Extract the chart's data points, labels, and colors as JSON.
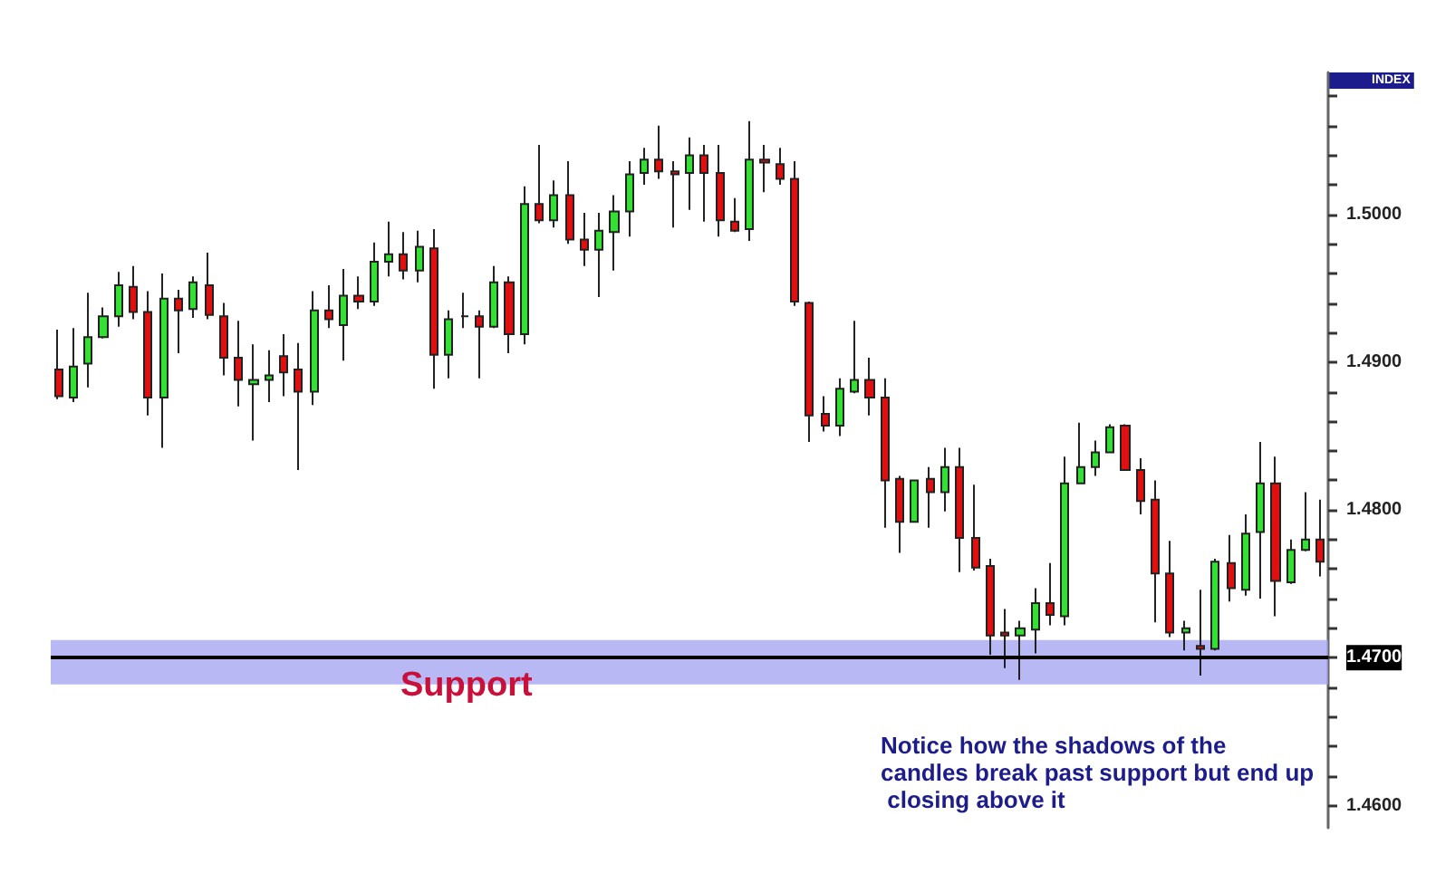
{
  "chart_data": {
    "type": "candlestick",
    "ylabel": "INDEX",
    "categories": [
      null,
      null,
      null,
      null,
      null,
      null,
      null,
      null,
      null,
      null,
      null,
      null,
      null,
      null,
      null,
      null,
      null,
      null,
      null,
      null,
      null,
      null,
      null,
      null,
      null,
      null,
      null,
      null,
      null,
      null,
      null,
      null,
      null,
      null,
      null,
      null,
      null,
      null,
      null,
      null,
      null,
      null,
      null,
      null,
      null,
      null,
      null,
      null,
      null,
      null,
      null,
      null,
      null,
      null,
      null,
      null,
      null,
      null,
      null,
      null,
      null,
      null,
      null,
      null,
      null,
      null,
      null,
      null,
      null,
      null,
      null,
      null,
      null,
      null,
      null,
      null,
      null,
      null,
      null,
      null,
      null,
      null,
      null,
      null,
      null
    ],
    "ohlc": [
      [
        1.4895,
        1.4922,
        1.4875,
        1.4877
      ],
      [
        1.4876,
        1.4923,
        1.4873,
        1.4897
      ],
      [
        1.4899,
        1.4947,
        1.4883,
        1.4917
      ],
      [
        1.4917,
        1.4937,
        1.4916,
        1.4931
      ],
      [
        1.4931,
        1.4961,
        1.4924,
        1.4952
      ],
      [
        1.4951,
        1.4965,
        1.4929,
        1.4934
      ],
      [
        1.4934,
        1.4948,
        1.4864,
        1.4876
      ],
      [
        1.4876,
        1.496,
        1.4842,
        1.4943
      ],
      [
        1.4943,
        1.4949,
        1.4906,
        1.4935
      ],
      [
        1.4936,
        1.4958,
        1.493,
        1.4954
      ],
      [
        1.4952,
        1.4974,
        1.4929,
        1.4932
      ],
      [
        1.4931,
        1.494,
        1.4891,
        1.4903
      ],
      [
        1.4903,
        1.4928,
        1.487,
        1.4888
      ],
      [
        1.4885,
        1.4912,
        1.4847,
        1.4888
      ],
      [
        1.4888,
        1.4908,
        1.4873,
        1.4891
      ],
      [
        1.4904,
        1.4919,
        1.4877,
        1.4893
      ],
      [
        1.4895,
        1.4913,
        1.4827,
        1.488
      ],
      [
        1.488,
        1.4948,
        1.4871,
        1.4935
      ],
      [
        1.4935,
        1.4952,
        1.4923,
        1.4929
      ],
      [
        1.4925,
        1.4963,
        1.4901,
        1.4945
      ],
      [
        1.4945,
        1.4958,
        1.4936,
        1.4941
      ],
      [
        1.4941,
        1.4981,
        1.4938,
        1.4968
      ],
      [
        1.4968,
        1.4995,
        1.4958,
        1.4973
      ],
      [
        1.4973,
        1.4988,
        1.4956,
        1.4962
      ],
      [
        1.4962,
        1.4989,
        1.4954,
        1.4978
      ],
      [
        1.4977,
        1.499,
        1.4882,
        1.4905
      ],
      [
        1.4905,
        1.4935,
        1.4889,
        1.4929
      ],
      [
        1.4931,
        1.4947,
        1.4923,
        1.4931
      ],
      [
        1.4931,
        1.4935,
        1.4889,
        1.4924
      ],
      [
        1.4924,
        1.4965,
        1.4923,
        1.4954
      ],
      [
        1.4954,
        1.4958,
        1.4906,
        1.4919
      ],
      [
        1.4919,
        1.5019,
        1.4912,
        1.5007
      ],
      [
        1.5007,
        1.5047,
        1.4994,
        1.4996
      ],
      [
        1.4996,
        1.5023,
        1.4991,
        1.5013
      ],
      [
        1.5013,
        1.5036,
        1.498,
        1.4983
      ],
      [
        1.4983,
        1.5001,
        1.4965,
        1.4976
      ],
      [
        1.4976,
        1.5001,
        1.4944,
        1.4989
      ],
      [
        1.4988,
        1.5013,
        1.4962,
        1.5002
      ],
      [
        1.5002,
        1.5036,
        1.4985,
        1.5027
      ],
      [
        1.5028,
        1.5045,
        1.502,
        1.5037
      ],
      [
        1.5037,
        1.506,
        1.5024,
        1.5029
      ],
      [
        1.5029,
        1.5036,
        1.4991,
        1.5027
      ],
      [
        1.5028,
        1.5052,
        1.5003,
        1.504
      ],
      [
        1.504,
        1.5047,
        1.4995,
        1.5028
      ],
      [
        1.5028,
        1.5047,
        1.4985,
        1.4996
      ],
      [
        1.4995,
        1.5011,
        1.4988,
        1.4989
      ],
      [
        1.499,
        1.5063,
        1.4982,
        1.5037
      ],
      [
        1.5037,
        1.5047,
        1.5015,
        1.5035
      ],
      [
        1.5034,
        1.5045,
        1.502,
        1.5024
      ],
      [
        1.5024,
        1.5036,
        1.4938,
        1.4941
      ],
      [
        1.494,
        1.4941,
        1.4846,
        1.4864
      ],
      [
        1.4865,
        1.4877,
        1.4853,
        1.4857
      ],
      [
        1.4857,
        1.4889,
        1.485,
        1.4882
      ],
      [
        1.488,
        1.4928,
        1.4879,
        1.4888
      ],
      [
        1.4888,
        1.4903,
        1.4864,
        1.4876
      ],
      [
        1.4876,
        1.4889,
        1.4788,
        1.482
      ],
      [
        1.4821,
        1.4823,
        1.4771,
        1.4792
      ],
      [
        1.4792,
        1.482,
        1.4792,
        1.482
      ],
      [
        1.4821,
        1.4829,
        1.4788,
        1.4812
      ],
      [
        1.4812,
        1.4842,
        1.4799,
        1.4829
      ],
      [
        1.4829,
        1.4842,
        1.4758,
        1.4781
      ],
      [
        1.4781,
        1.4817,
        1.4759,
        1.4761
      ],
      [
        1.4762,
        1.4767,
        1.4702,
        1.4715
      ],
      [
        1.4717,
        1.4733,
        1.4693,
        1.4715
      ],
      [
        1.4715,
        1.4725,
        1.4685,
        1.472
      ],
      [
        1.4719,
        1.4747,
        1.4703,
        1.4737
      ],
      [
        1.4737,
        1.4764,
        1.4722,
        1.4729
      ],
      [
        1.4728,
        1.4836,
        1.4722,
        1.4818
      ],
      [
        1.4818,
        1.4859,
        1.4818,
        1.4829
      ],
      [
        1.4829,
        1.4847,
        1.4823,
        1.4839
      ],
      [
        1.4839,
        1.4858,
        1.4839,
        1.4856
      ],
      [
        1.4857,
        1.4858,
        1.4827,
        1.4827
      ],
      [
        1.4827,
        1.4835,
        1.4797,
        1.4806
      ],
      [
        1.4807,
        1.482,
        1.4724,
        1.4757
      ],
      [
        1.4757,
        1.4779,
        1.4714,
        1.4717
      ],
      [
        1.4717,
        1.4725,
        1.4705,
        1.472
      ],
      [
        1.4708,
        1.4746,
        1.4688,
        1.4706
      ],
      [
        1.4706,
        1.4767,
        1.4705,
        1.4765
      ],
      [
        1.4764,
        1.4783,
        1.4738,
        1.4747
      ],
      [
        1.4746,
        1.4797,
        1.4742,
        1.4784
      ],
      [
        1.4785,
        1.4846,
        1.474,
        1.4818
      ],
      [
        1.4818,
        1.4836,
        1.4728,
        1.4752
      ],
      [
        1.4751,
        1.478,
        1.475,
        1.4773
      ],
      [
        1.4773,
        1.4812,
        1.4772,
        1.478
      ],
      [
        1.478,
        1.4807,
        1.4755,
        1.4765
      ]
    ],
    "ylim": [
      1.4585,
      1.5096
    ],
    "yticks": [
      {
        "value": 1.46,
        "label": "1.4600"
      },
      {
        "value": 1.462,
        "label": null
      },
      {
        "value": 1.464,
        "label": null
      },
      {
        "value": 1.466,
        "label": null
      },
      {
        "value": 1.468,
        "label": null
      },
      {
        "value": 1.47,
        "label": "1.4700"
      },
      {
        "value": 1.472,
        "label": null
      },
      {
        "value": 1.474,
        "label": null
      },
      {
        "value": 1.476,
        "label": null
      },
      {
        "value": 1.478,
        "label": null
      },
      {
        "value": 1.48,
        "label": "1.4800"
      },
      {
        "value": 1.482,
        "label": null
      },
      {
        "value": 1.484,
        "label": null
      },
      {
        "value": 1.486,
        "label": null
      },
      {
        "value": 1.488,
        "label": null
      },
      {
        "value": 1.49,
        "label": "1.4900"
      },
      {
        "value": 1.492,
        "label": null
      },
      {
        "value": 1.494,
        "label": null
      },
      {
        "value": 1.496,
        "label": null
      },
      {
        "value": 1.498,
        "label": null
      },
      {
        "value": 1.5,
        "label": "1.5000"
      },
      {
        "value": 1.502,
        "label": null
      },
      {
        "value": 1.504,
        "label": null
      },
      {
        "value": 1.506,
        "label": null
      },
      {
        "value": 1.508,
        "label": null
      }
    ],
    "tick_labels": "y",
    "ref_lines": [
      {
        "axis": "y",
        "value": 1.47,
        "color": "#000000"
      }
    ],
    "bands": [
      {
        "axis": "y",
        "from": 1.4682,
        "to": 1.4712,
        "color": "#9fa0f0"
      }
    ],
    "annotations": [
      {
        "text": "Support",
        "y": 1.47
      },
      "Notice how the shadows of the candles break past support but end up closing above it"
    ],
    "grid": false
  }
}
